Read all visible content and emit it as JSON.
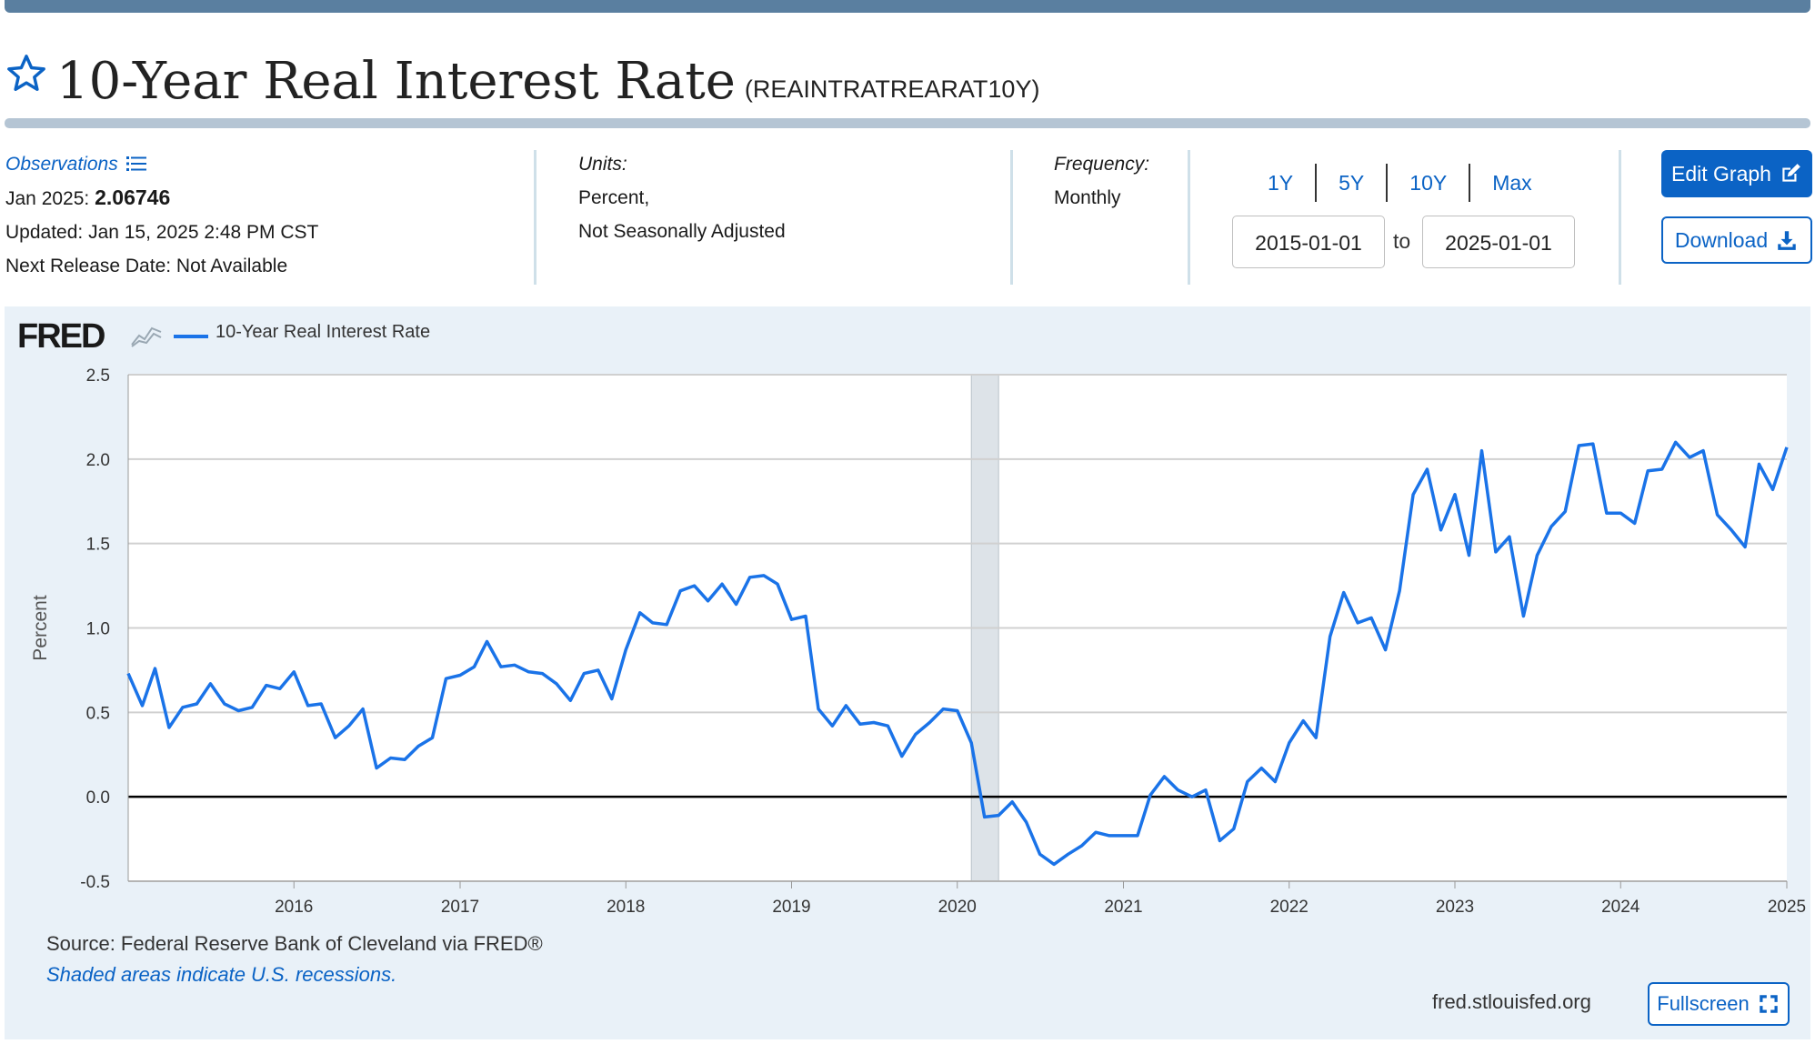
{
  "header": {
    "title": "10-Year Real Interest Rate",
    "series_id": "(REAINTRATREARAT10Y)"
  },
  "meta": {
    "observations_label": "Observations",
    "obs_date": "Jan 2025:",
    "obs_value": "2.06746",
    "updated": "Updated: Jan 15, 2025 2:48 PM CST",
    "next_release": "Next Release Date: Not Available",
    "units_label": "Units:",
    "units_line1": "Percent,",
    "units_line2": "Not Seasonally Adjusted",
    "frequency_label": "Frequency:",
    "frequency_value": "Monthly"
  },
  "range": {
    "buttons": [
      "1Y",
      "5Y",
      "10Y",
      "Max"
    ],
    "start": "2015-01-01",
    "to_label": "to",
    "end": "2025-01-01"
  },
  "actions": {
    "edit_graph": "Edit Graph",
    "download": "Download",
    "fullscreen": "Fullscreen"
  },
  "graph": {
    "logo": "FRED",
    "source": "Source: Federal Reserve Bank of Cleveland via FRED®",
    "recession_note": "Shaded areas indicate U.S. recessions.",
    "url": "fred.stlouisfed.org"
  },
  "colors": {
    "series": "#1a73e8",
    "recession": "#dde3e8",
    "accent": "#0b63c5"
  },
  "chart_data": {
    "type": "line",
    "title": "",
    "legend": [
      "10-Year Real Interest Rate"
    ],
    "ylabel": "Percent",
    "xlabel": "",
    "ylim": [
      -0.5,
      2.5
    ],
    "yticks": [
      -0.5,
      0.0,
      0.5,
      1.0,
      1.5,
      2.0,
      2.5
    ],
    "ytick_labels": [
      "-0.5",
      "0.0",
      "0.5",
      "1.0",
      "1.5",
      "2.0",
      "2.5"
    ],
    "xlim": [
      "2015-01-01",
      "2025-01-01"
    ],
    "xtick_labels": [
      "2016",
      "2017",
      "2018",
      "2019",
      "2020",
      "2021",
      "2022",
      "2023",
      "2024",
      "2025"
    ],
    "grid": true,
    "recessions": [
      {
        "start": "2020-02-01",
        "end": "2020-04-01"
      }
    ],
    "series": [
      {
        "name": "10-Year Real Interest Rate",
        "x": [
          "2015-01",
          "2015-02",
          "2015-03",
          "2015-04",
          "2015-05",
          "2015-06",
          "2015-07",
          "2015-08",
          "2015-09",
          "2015-10",
          "2015-11",
          "2015-12",
          "2016-01",
          "2016-02",
          "2016-03",
          "2016-04",
          "2016-05",
          "2016-06",
          "2016-07",
          "2016-08",
          "2016-09",
          "2016-10",
          "2016-11",
          "2016-12",
          "2017-01",
          "2017-02",
          "2017-03",
          "2017-04",
          "2017-05",
          "2017-06",
          "2017-07",
          "2017-08",
          "2017-09",
          "2017-10",
          "2017-11",
          "2017-12",
          "2018-01",
          "2018-02",
          "2018-03",
          "2018-04",
          "2018-05",
          "2018-06",
          "2018-07",
          "2018-08",
          "2018-09",
          "2018-10",
          "2018-11",
          "2018-12",
          "2019-01",
          "2019-02",
          "2019-03",
          "2019-04",
          "2019-05",
          "2019-06",
          "2019-07",
          "2019-08",
          "2019-09",
          "2019-10",
          "2019-11",
          "2019-12",
          "2020-01",
          "2020-02",
          "2020-03",
          "2020-04",
          "2020-05",
          "2020-06",
          "2020-07",
          "2020-08",
          "2020-09",
          "2020-10",
          "2020-11",
          "2020-12",
          "2021-01",
          "2021-02",
          "2021-03",
          "2021-04",
          "2021-05",
          "2021-06",
          "2021-07",
          "2021-08",
          "2021-09",
          "2021-10",
          "2021-11",
          "2021-12",
          "2022-01",
          "2022-02",
          "2022-03",
          "2022-04",
          "2022-05",
          "2022-06",
          "2022-07",
          "2022-08",
          "2022-09",
          "2022-10",
          "2022-11",
          "2022-12",
          "2023-01",
          "2023-02",
          "2023-03",
          "2023-04",
          "2023-05",
          "2023-06",
          "2023-07",
          "2023-08",
          "2023-09",
          "2023-10",
          "2023-11",
          "2023-12",
          "2024-01",
          "2024-02",
          "2024-03",
          "2024-04",
          "2024-05",
          "2024-06",
          "2024-07",
          "2024-08",
          "2024-09",
          "2024-10",
          "2024-11",
          "2024-12",
          "2025-01"
        ],
        "values": [
          0.73,
          0.54,
          0.76,
          0.41,
          0.53,
          0.55,
          0.67,
          0.55,
          0.51,
          0.53,
          0.66,
          0.64,
          0.74,
          0.54,
          0.55,
          0.35,
          0.42,
          0.52,
          0.17,
          0.23,
          0.22,
          0.3,
          0.35,
          0.7,
          0.72,
          0.77,
          0.92,
          0.77,
          0.78,
          0.74,
          0.73,
          0.67,
          0.57,
          0.73,
          0.75,
          0.58,
          0.87,
          1.09,
          1.03,
          1.02,
          1.22,
          1.25,
          1.16,
          1.26,
          1.14,
          1.3,
          1.31,
          1.26,
          1.05,
          1.07,
          0.52,
          0.42,
          0.54,
          0.43,
          0.44,
          0.42,
          0.24,
          0.37,
          0.44,
          0.52,
          0.51,
          0.32,
          -0.12,
          -0.11,
          -0.03,
          -0.15,
          -0.34,
          -0.4,
          -0.34,
          -0.29,
          -0.21,
          -0.23,
          -0.23,
          -0.23,
          0.01,
          0.12,
          0.04,
          0.0,
          0.04,
          -0.26,
          -0.19,
          0.09,
          0.17,
          0.09,
          0.32,
          0.45,
          0.35,
          0.95,
          1.21,
          1.03,
          1.06,
          0.87,
          1.22,
          1.79,
          1.94,
          1.58,
          1.79,
          1.43,
          2.05,
          1.45,
          1.54,
          1.07,
          1.43,
          1.6,
          1.69,
          2.08,
          2.09,
          1.68,
          1.68,
          1.62,
          1.93,
          1.94,
          2.1,
          2.01,
          2.05,
          1.67,
          1.58,
          1.48,
          1.97,
          1.82,
          2.07
        ]
      }
    ]
  }
}
